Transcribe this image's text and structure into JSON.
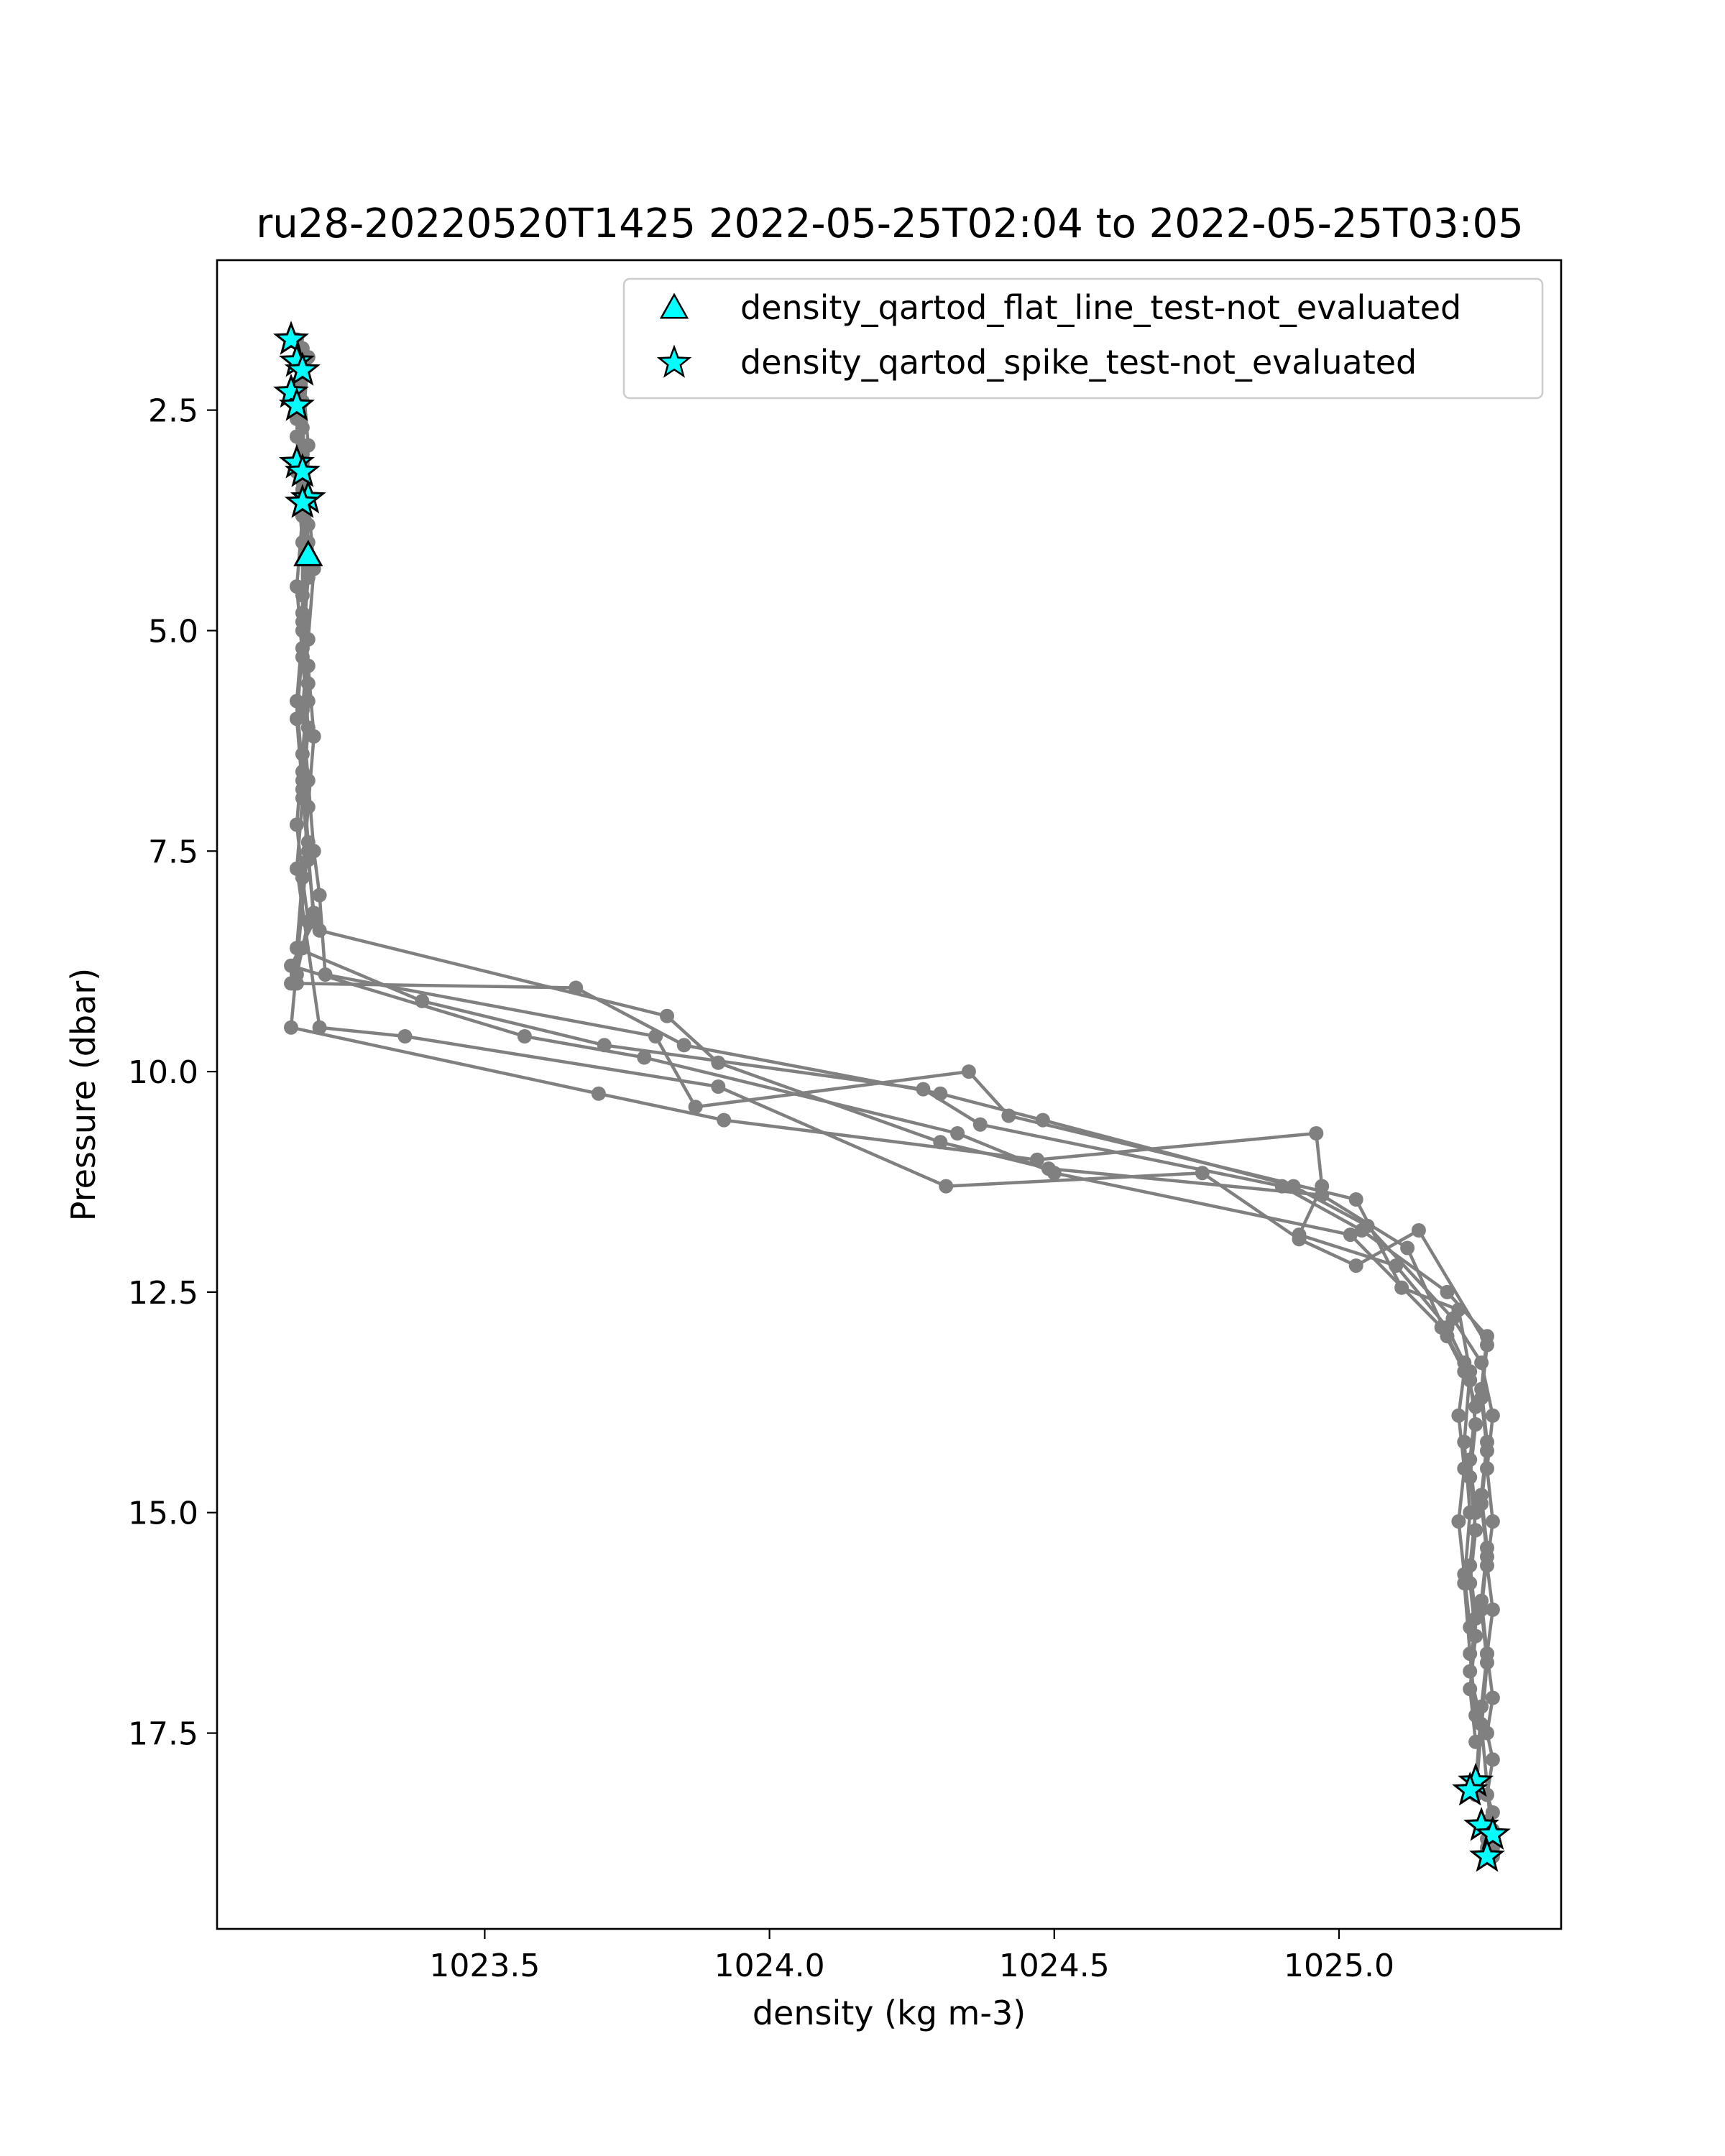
{
  "chart_data": {
    "type": "scatter",
    "title": "ru28-20220520T1425 2022-05-25T02:04 to 2022-05-25T03:05",
    "xlabel": "density (kg m-3)",
    "ylabel": "Pressure (dbar)",
    "xlim": [
      1023.03,
      1025.39
    ],
    "ylim": [
      19.72,
      0.8
    ],
    "y_inverted": true,
    "xticks": [
      {
        "value": 1023.5,
        "label": "1023.5"
      },
      {
        "value": 1024.0,
        "label": "1024.0"
      },
      {
        "value": 1024.5,
        "label": "1024.5"
      },
      {
        "value": 1025.0,
        "label": "1025.0"
      }
    ],
    "yticks": [
      {
        "value": 2.5,
        "label": "2.5"
      },
      {
        "value": 5.0,
        "label": "5.0"
      },
      {
        "value": 7.5,
        "label": "7.5"
      },
      {
        "value": 10.0,
        "label": "10.0"
      },
      {
        "value": 12.5,
        "label": "12.5"
      },
      {
        "value": 15.0,
        "label": "15.0"
      },
      {
        "value": 17.5,
        "label": "17.5"
      }
    ],
    "grid": false,
    "legend_position": "top-right",
    "profile_color": "#808080",
    "flag_color": "#00ffff",
    "profiles": [
      {
        "x": [
          1023.17,
          1023.18,
          1023.17,
          1023.18,
          1023.18,
          1023.19,
          1023.18,
          1023.17,
          1023.18,
          1023.19,
          1023.18,
          1023.17,
          1023.16,
          1023.17,
          1023.66,
          1023.85,
          1024.3,
          1024.48,
          1024.92,
          1025.05,
          1025.2,
          1025.25,
          1025.27,
          1025.26,
          1025.27,
          1025.26,
          1025.27,
          1025.26,
          1025.27,
          1025.26,
          1025.27,
          1025.26,
          1025.27,
          1025.26,
          1025.27,
          1025.26,
          1025.27,
          1025.26,
          1025.27
        ],
        "y": [
          1.7,
          2.4,
          3.2,
          4.0,
          4.8,
          5.6,
          6.4,
          7.2,
          7.8,
          8.3,
          8.6,
          8.9,
          9.0,
          9.0,
          9.05,
          9.7,
          10.25,
          10.55,
          11.3,
          11.75,
          12.8,
          13.3,
          13.9,
          14.5,
          15.1,
          15.6,
          16.1,
          16.6,
          17.1,
          17.5,
          17.8,
          18.2,
          18.4,
          18.5,
          18.6,
          18.7,
          18.75,
          18.8,
          18.9
        ]
      },
      {
        "x": [
          1023.18,
          1023.17,
          1023.18,
          1023.19,
          1023.18,
          1023.17,
          1023.18,
          1023.19,
          1023.2,
          1023.21,
          1023.82,
          1023.91,
          1024.3,
          1024.49,
          1024.97,
          1025.12,
          1025.19,
          1025.23,
          1025.24,
          1025.23,
          1025.24,
          1025.23,
          1025.24,
          1025.23,
          1025.24
        ],
        "y": [
          2.0,
          2.8,
          3.6,
          4.4,
          5.2,
          6.0,
          6.8,
          7.6,
          8.2,
          8.4,
          9.37,
          9.9,
          10.8,
          11.1,
          11.4,
          12.0,
          13.0,
          13.5,
          14.0,
          14.6,
          15.2,
          15.8,
          16.4,
          17.0,
          17.6
        ]
      },
      {
        "x": [
          1023.19,
          1023.18,
          1023.19,
          1023.2,
          1023.19,
          1023.18,
          1023.19,
          1023.2,
          1023.21,
          1023.22,
          1023.8,
          1023.87,
          1024.35,
          1024.42,
          1025.03,
          1025.11,
          1025.21,
          1025.23,
          1025.22,
          1025.23,
          1025.22,
          1025.23,
          1025.24
        ],
        "y": [
          1.9,
          2.7,
          3.5,
          4.3,
          5.1,
          5.9,
          6.7,
          7.5,
          8.0,
          8.9,
          9.6,
          10.4,
          10.0,
          10.5,
          11.45,
          12.45,
          12.7,
          13.4,
          14.2,
          15.0,
          15.8,
          16.6,
          17.3
        ]
      },
      {
        "x": [
          1023.17,
          1023.18,
          1023.19,
          1023.18,
          1023.19,
          1023.2,
          1023.19,
          1023.18,
          1023.17,
          1023.39,
          1023.71,
          1024.27,
          1024.37,
          1024.9,
          1025.04,
          1025.19,
          1025.26,
          1025.25,
          1025.26,
          1025.25,
          1025.26,
          1025.25,
          1025.26,
          1025.25,
          1025.24
        ],
        "y": [
          2.2,
          3.0,
          3.8,
          4.6,
          5.4,
          6.2,
          7.0,
          7.8,
          8.6,
          9.2,
          9.7,
          10.2,
          10.6,
          11.3,
          11.8,
          12.5,
          13.0,
          13.6,
          14.2,
          14.8,
          15.4,
          16.0,
          16.6,
          17.2,
          18.1
        ]
      },
      {
        "x": [
          1023.17,
          1023.18,
          1023.19,
          1023.18,
          1023.19,
          1023.18,
          1023.19,
          1023.2,
          1023.16,
          1023.57,
          1023.78,
          1024.33,
          1024.5,
          1025.02,
          1025.18,
          1025.22,
          1025.21,
          1025.22,
          1025.21,
          1025.22,
          1025.23
        ],
        "y": [
          2.2,
          3.1,
          4.0,
          4.9,
          5.8,
          6.7,
          7.5,
          8.3,
          8.8,
          9.6,
          9.84,
          10.7,
          11.15,
          11.85,
          12.9,
          13.4,
          13.9,
          14.5,
          15.1,
          15.7,
          16.3
        ]
      },
      {
        "x": [
          1023.18,
          1023.17,
          1023.18,
          1023.19,
          1023.18,
          1023.17,
          1023.18,
          1023.19,
          1023.16,
          1023.7,
          1023.92,
          1024.47,
          1024.96,
          1024.97,
          1024.93,
          1025.1,
          1025.19,
          1025.22,
          1025.24,
          1025.23,
          1025.24,
          1025.23,
          1025.24,
          1025.23,
          1025.25,
          1025.27
        ],
        "y": [
          1.8,
          2.6,
          3.4,
          4.2,
          5.0,
          5.8,
          6.6,
          7.4,
          9.5,
          10.25,
          10.55,
          11.0,
          10.7,
          11.3,
          11.85,
          12.2,
          12.9,
          13.3,
          13.8,
          14.4,
          15.0,
          15.6,
          16.2,
          16.8,
          17.4,
          18.8
        ]
      },
      {
        "x": [
          1023.18,
          1023.19,
          1023.18,
          1023.17,
          1023.18,
          1023.19,
          1023.18,
          1023.17,
          1023.21,
          1023.36,
          1023.91,
          1024.31,
          1024.76,
          1024.93,
          1025.03,
          1025.14,
          1025.26,
          1025.25,
          1025.26,
          1025.25,
          1025.26,
          1025.25,
          1025.26,
          1025.24
        ],
        "y": [
          2.1,
          2.9,
          3.7,
          4.5,
          5.3,
          6.1,
          6.9,
          7.7,
          9.5,
          9.6,
          10.17,
          11.3,
          11.15,
          11.9,
          12.2,
          11.8,
          13.1,
          13.7,
          14.3,
          14.9,
          15.5,
          16.1,
          16.7,
          18.2
        ]
      }
    ],
    "flags": {
      "stars": [
        {
          "x": 1023.16,
          "y": 1.7
        },
        {
          "x": 1023.17,
          "y": 1.95
        },
        {
          "x": 1023.18,
          "y": 2.05
        },
        {
          "x": 1023.16,
          "y": 2.3
        },
        {
          "x": 1023.17,
          "y": 2.45
        },
        {
          "x": 1023.17,
          "y": 3.1
        },
        {
          "x": 1023.18,
          "y": 3.2
        },
        {
          "x": 1023.19,
          "y": 3.5
        },
        {
          "x": 1023.18,
          "y": 3.55
        },
        {
          "x": 1025.24,
          "y": 18.05
        },
        {
          "x": 1025.23,
          "y": 18.15
        },
        {
          "x": 1025.25,
          "y": 18.55
        },
        {
          "x": 1025.27,
          "y": 18.65
        },
        {
          "x": 1025.26,
          "y": 18.9
        }
      ],
      "triangles": [
        {
          "x": 1023.19,
          "y": 4.15
        }
      ]
    },
    "legend": [
      {
        "marker": "triangle",
        "label": "density_qartod_flat_line_test-not_evaluated"
      },
      {
        "marker": "star",
        "label": "density_qartod_spike_test-not_evaluated"
      }
    ]
  }
}
